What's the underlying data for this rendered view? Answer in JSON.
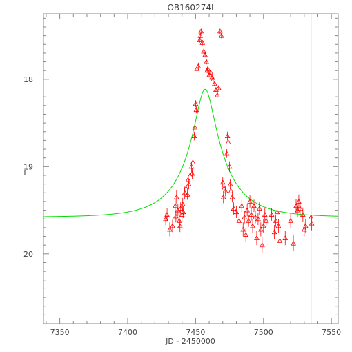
{
  "chart_data": {
    "type": "scatter",
    "title": "OB160274I",
    "xlabel": "JD - 2450000",
    "ylabel": "I",
    "xlim": [
      7338,
      7555
    ],
    "ylim": [
      20.8,
      17.25
    ],
    "x_ticks": [
      7350,
      7400,
      7450,
      7500,
      7550
    ],
    "y_ticks": [
      18,
      19,
      20
    ],
    "x_tick_labels": [
      "7350",
      "7400",
      "7450",
      "7500",
      "7550"
    ],
    "y_tick_labels": [
      "18",
      "19",
      "20"
    ],
    "vline_x": 7535,
    "colors": {
      "frame": "#888888",
      "data": "#ff0000",
      "model": "#00dd00",
      "vline": "#999999"
    },
    "model": {
      "type": "point-lens",
      "t0": 7457,
      "u0": 0.21,
      "tE": 31,
      "I_source": 19.9,
      "I_base": 19.58
    },
    "series": [
      {
        "marker": "triangle",
        "color": "#ff0000",
        "points": [
          {
            "x": 7428,
            "y": 19.6,
            "e": 0.07
          },
          {
            "x": 7429,
            "y": 19.55,
            "e": 0.07
          },
          {
            "x": 7431,
            "y": 19.72,
            "e": 0.08
          },
          {
            "x": 7433,
            "y": 19.68,
            "e": 0.07
          },
          {
            "x": 7435,
            "y": 19.45,
            "e": 0.08
          },
          {
            "x": 7435.5,
            "y": 19.57,
            "e": 0.07
          },
          {
            "x": 7436,
            "y": 19.35,
            "e": 0.08
          },
          {
            "x": 7437,
            "y": 19.5,
            "e": 0.07
          },
          {
            "x": 7438,
            "y": 19.62,
            "e": 0.08
          },
          {
            "x": 7438.5,
            "y": 19.68,
            "e": 0.07
          },
          {
            "x": 7439,
            "y": 19.48,
            "e": 0.07
          },
          {
            "x": 7440,
            "y": 19.55,
            "e": 0.08
          },
          {
            "x": 7440.5,
            "y": 19.43,
            "e": 0.07
          },
          {
            "x": 7441,
            "y": 19.52,
            "e": 0.07
          },
          {
            "x": 7442,
            "y": 19.3,
            "e": 0.07
          },
          {
            "x": 7443,
            "y": 19.25,
            "e": 0.07
          },
          {
            "x": 7444,
            "y": 19.32,
            "e": 0.06
          },
          {
            "x": 7444.5,
            "y": 19.15,
            "e": 0.06
          },
          {
            "x": 7445,
            "y": 19.2,
            "e": 0.06
          },
          {
            "x": 7446,
            "y": 19.1,
            "e": 0.06
          },
          {
            "x": 7447,
            "y": 19.0,
            "e": 0.06
          },
          {
            "x": 7447.5,
            "y": 19.08,
            "e": 0.06
          },
          {
            "x": 7448,
            "y": 18.95,
            "e": 0.05
          },
          {
            "x": 7449,
            "y": 18.65,
            "e": 0.05
          },
          {
            "x": 7449.5,
            "y": 18.55,
            "e": 0.05
          },
          {
            "x": 7450,
            "y": 18.28,
            "e": 0.04
          },
          {
            "x": 7450.5,
            "y": 18.35,
            "e": 0.04
          },
          {
            "x": 7451,
            "y": 17.88,
            "e": 0.04
          },
          {
            "x": 7452,
            "y": 17.85,
            "e": 0.04
          },
          {
            "x": 7453,
            "y": 17.55,
            "e": 0.03
          },
          {
            "x": 7453.5,
            "y": 17.5,
            "e": 0.03
          },
          {
            "x": 7454,
            "y": 17.45,
            "e": 0.03
          },
          {
            "x": 7455,
            "y": 17.58,
            "e": 0.03
          },
          {
            "x": 7456,
            "y": 17.68,
            "e": 0.03
          },
          {
            "x": 7457,
            "y": 17.72,
            "e": 0.03
          },
          {
            "x": 7458,
            "y": 17.8,
            "e": 0.03
          },
          {
            "x": 7458.5,
            "y": 17.9,
            "e": 0.03
          },
          {
            "x": 7459,
            "y": 17.88,
            "e": 0.03
          },
          {
            "x": 7460,
            "y": 17.95,
            "e": 0.03
          },
          {
            "x": 7461,
            "y": 17.92,
            "e": 0.03
          },
          {
            "x": 7462,
            "y": 17.98,
            "e": 0.03
          },
          {
            "x": 7463,
            "y": 18.0,
            "e": 0.03
          },
          {
            "x": 7464,
            "y": 18.05,
            "e": 0.03
          },
          {
            "x": 7465,
            "y": 18.12,
            "e": 0.03
          },
          {
            "x": 7466,
            "y": 18.18,
            "e": 0.03
          },
          {
            "x": 7467,
            "y": 18.1,
            "e": 0.03
          },
          {
            "x": 7468,
            "y": 17.45,
            "e": 0.03
          },
          {
            "x": 7469,
            "y": 17.5,
            "e": 0.03
          },
          {
            "x": 7470,
            "y": 19.18,
            "e": 0.06
          },
          {
            "x": 7470.5,
            "y": 19.35,
            "e": 0.07
          },
          {
            "x": 7471,
            "y": 19.25,
            "e": 0.06
          },
          {
            "x": 7472,
            "y": 19.28,
            "e": 0.06
          },
          {
            "x": 7473,
            "y": 18.85,
            "e": 0.05
          },
          {
            "x": 7473.5,
            "y": 18.65,
            "e": 0.05
          },
          {
            "x": 7474,
            "y": 18.72,
            "e": 0.05
          },
          {
            "x": 7475,
            "y": 19.0,
            "e": 0.06
          },
          {
            "x": 7475.5,
            "y": 19.2,
            "e": 0.06
          },
          {
            "x": 7476,
            "y": 19.28,
            "e": 0.06
          },
          {
            "x": 7477,
            "y": 19.35,
            "e": 0.06
          },
          {
            "x": 7478,
            "y": 19.48,
            "e": 0.07
          },
          {
            "x": 7480,
            "y": 19.52,
            "e": 0.07
          },
          {
            "x": 7482,
            "y": 19.62,
            "e": 0.07
          },
          {
            "x": 7484,
            "y": 19.45,
            "e": 0.07
          },
          {
            "x": 7485,
            "y": 19.72,
            "e": 0.08
          },
          {
            "x": 7486,
            "y": 19.58,
            "e": 0.07
          },
          {
            "x": 7487,
            "y": 19.78,
            "e": 0.08
          },
          {
            "x": 7488,
            "y": 19.5,
            "e": 0.07
          },
          {
            "x": 7489,
            "y": 19.62,
            "e": 0.07
          },
          {
            "x": 7490,
            "y": 19.4,
            "e": 0.07
          },
          {
            "x": 7491,
            "y": 19.55,
            "e": 0.07
          },
          {
            "x": 7492,
            "y": 19.68,
            "e": 0.08
          },
          {
            "x": 7493,
            "y": 19.45,
            "e": 0.07
          },
          {
            "x": 7494,
            "y": 19.58,
            "e": 0.07
          },
          {
            "x": 7495,
            "y": 19.82,
            "e": 0.08
          },
          {
            "x": 7496,
            "y": 19.6,
            "e": 0.07
          },
          {
            "x": 7497,
            "y": 19.48,
            "e": 0.07
          },
          {
            "x": 7498,
            "y": 19.72,
            "e": 0.08
          },
          {
            "x": 7499,
            "y": 19.9,
            "e": 0.09
          },
          {
            "x": 7500,
            "y": 19.68,
            "e": 0.08
          },
          {
            "x": 7501,
            "y": 19.55,
            "e": 0.07
          },
          {
            "x": 7502,
            "y": 19.62,
            "e": 0.07
          },
          {
            "x": 7506,
            "y": 19.55,
            "e": 0.07
          },
          {
            "x": 7508,
            "y": 19.75,
            "e": 0.08
          },
          {
            "x": 7509,
            "y": 19.62,
            "e": 0.07
          },
          {
            "x": 7510,
            "y": 19.52,
            "e": 0.07
          },
          {
            "x": 7511,
            "y": 19.68,
            "e": 0.08
          },
          {
            "x": 7512,
            "y": 19.85,
            "e": 0.08
          },
          {
            "x": 7516,
            "y": 19.82,
            "e": 0.08
          },
          {
            "x": 7520,
            "y": 19.62,
            "e": 0.08
          },
          {
            "x": 7522,
            "y": 19.88,
            "e": 0.09
          },
          {
            "x": 7524,
            "y": 19.45,
            "e": 0.08
          },
          {
            "x": 7525,
            "y": 19.5,
            "e": 0.08
          },
          {
            "x": 7526,
            "y": 19.4,
            "e": 0.08
          },
          {
            "x": 7527,
            "y": 19.48,
            "e": 0.08
          },
          {
            "x": 7529,
            "y": 19.55,
            "e": 0.08
          },
          {
            "x": 7530,
            "y": 19.72,
            "e": 0.08
          },
          {
            "x": 7531,
            "y": 19.68,
            "e": 0.08
          },
          {
            "x": 7535,
            "y": 19.58,
            "e": 0.08
          },
          {
            "x": 7535.5,
            "y": 19.65,
            "e": 0.08
          }
        ]
      }
    ]
  }
}
